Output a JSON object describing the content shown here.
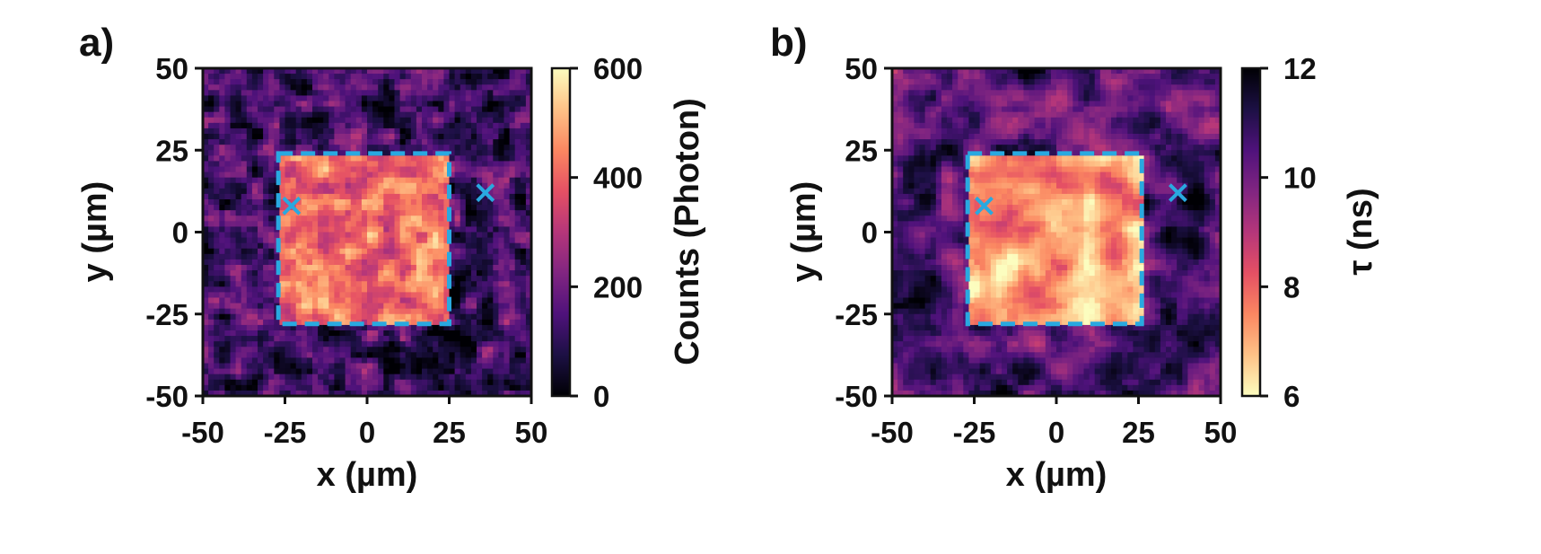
{
  "colors": {
    "roi_box": "#29a9e0",
    "marker": "#29a9e0",
    "colormap": [
      "#000004",
      "#1c1044",
      "#4f127b",
      "#812581",
      "#b5367a",
      "#e55064",
      "#fb8761",
      "#fec287",
      "#fcfdbf"
    ]
  },
  "chart_data": [
    {
      "type": "heatmap",
      "panel_label": "a)",
      "xlabel": "x (µm)",
      "ylabel": "y (µm)",
      "xlim": [
        -50,
        50
      ],
      "ylim": [
        -50,
        50
      ],
      "xticks": [
        -50,
        -25,
        0,
        25,
        50
      ],
      "yticks": [
        -50,
        -25,
        0,
        25,
        50
      ],
      "colorbar": {
        "label": "Counts (Photon)",
        "range": [
          0,
          600
        ],
        "ticks": [
          0,
          200,
          400,
          600
        ],
        "reversed": false
      },
      "roi": {
        "x": [
          -27,
          25
        ],
        "y": [
          -28,
          24
        ]
      },
      "markers": [
        {
          "x": -23,
          "y": 8
        },
        {
          "x": 36,
          "y": 12
        }
      ],
      "levels": {
        "inside_roi": 420,
        "outside_roi": 130
      }
    },
    {
      "type": "heatmap",
      "panel_label": "b)",
      "xlabel": "x (µm)",
      "ylabel": "y (µm)",
      "xlim": [
        -50,
        50
      ],
      "ylim": [
        -50,
        50
      ],
      "xticks": [
        -50,
        -25,
        0,
        25,
        50
      ],
      "yticks": [
        -50,
        -25,
        0,
        25,
        50
      ],
      "colorbar": {
        "label": "τ (ns)",
        "range": [
          6,
          12
        ],
        "ticks": [
          6,
          8,
          10,
          12
        ],
        "reversed": true
      },
      "roi": {
        "x": [
          -27,
          26
        ],
        "y": [
          -28,
          24
        ]
      },
      "markers": [
        {
          "x": -22,
          "y": 8
        },
        {
          "x": 37,
          "y": 12
        }
      ],
      "levels": {
        "inside_roi": 7.2,
        "outside_roi": 10.6
      }
    }
  ]
}
